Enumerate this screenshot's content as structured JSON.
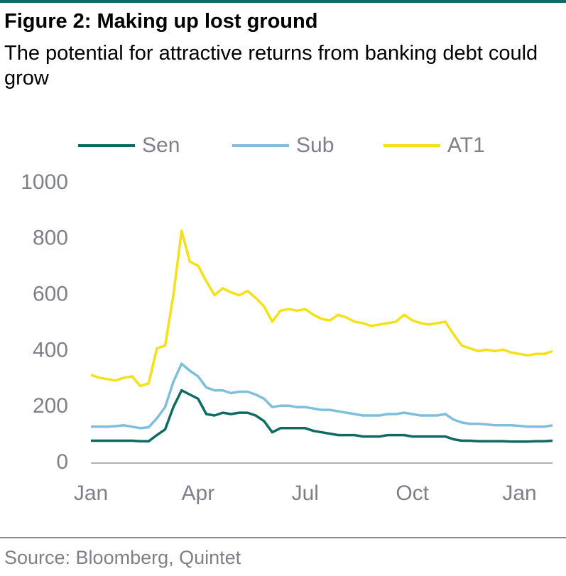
{
  "chart_data": {
    "type": "line",
    "title": "Figure 2: Making up lost ground",
    "subtitle": "The potential for attractive returns from banking debt could grow",
    "source": "Source: Bloomberg, Quintet",
    "categories": [
      "Jan",
      null,
      null,
      null,
      null,
      null,
      null,
      null,
      null,
      null,
      null,
      null,
      null,
      "Apr",
      null,
      null,
      null,
      null,
      null,
      null,
      null,
      null,
      null,
      null,
      null,
      null,
      "Jul",
      null,
      null,
      null,
      null,
      null,
      null,
      null,
      null,
      null,
      null,
      null,
      null,
      "Oct",
      null,
      null,
      null,
      null,
      null,
      null,
      null,
      null,
      null,
      null,
      null,
      null,
      "Jan",
      null,
      null,
      null,
      null
    ],
    "series": [
      {
        "name": "Sen",
        "color": "#0e6b63",
        "values": [
          80,
          80,
          80,
          80,
          80,
          80,
          78,
          78,
          100,
          120,
          200,
          260,
          245,
          230,
          175,
          170,
          180,
          175,
          180,
          180,
          170,
          150,
          110,
          125,
          125,
          125,
          125,
          115,
          110,
          105,
          100,
          100,
          100,
          95,
          95,
          95,
          100,
          100,
          100,
          95,
          95,
          95,
          95,
          95,
          85,
          80,
          80,
          78,
          78,
          78,
          78,
          77,
          77,
          77,
          78,
          78,
          80
        ]
      },
      {
        "name": "Sub",
        "color": "#7fbfdc",
        "values": [
          130,
          130,
          130,
          132,
          135,
          130,
          125,
          128,
          160,
          200,
          290,
          355,
          330,
          310,
          270,
          260,
          260,
          250,
          255,
          255,
          245,
          230,
          200,
          205,
          205,
          200,
          200,
          195,
          190,
          190,
          185,
          180,
          175,
          170,
          170,
          170,
          175,
          175,
          180,
          175,
          170,
          170,
          170,
          175,
          155,
          145,
          140,
          140,
          138,
          135,
          135,
          135,
          133,
          130,
          130,
          130,
          135
        ]
      },
      {
        "name": "AT1",
        "color": "#f5e11a",
        "values": [
          315,
          305,
          300,
          295,
          305,
          310,
          275,
          285,
          410,
          420,
          600,
          830,
          720,
          705,
          650,
          600,
          625,
          610,
          600,
          615,
          590,
          560,
          505,
          545,
          550,
          545,
          550,
          530,
          515,
          510,
          530,
          520,
          505,
          500,
          490,
          495,
          500,
          505,
          530,
          510,
          500,
          495,
          500,
          505,
          460,
          420,
          410,
          400,
          405,
          400,
          405,
          395,
          390,
          385,
          390,
          390,
          400
        ]
      }
    ],
    "ylim": [
      0,
      1000
    ],
    "yticks": [
      0,
      200,
      400,
      600,
      800,
      1000
    ],
    "grid": false
  }
}
